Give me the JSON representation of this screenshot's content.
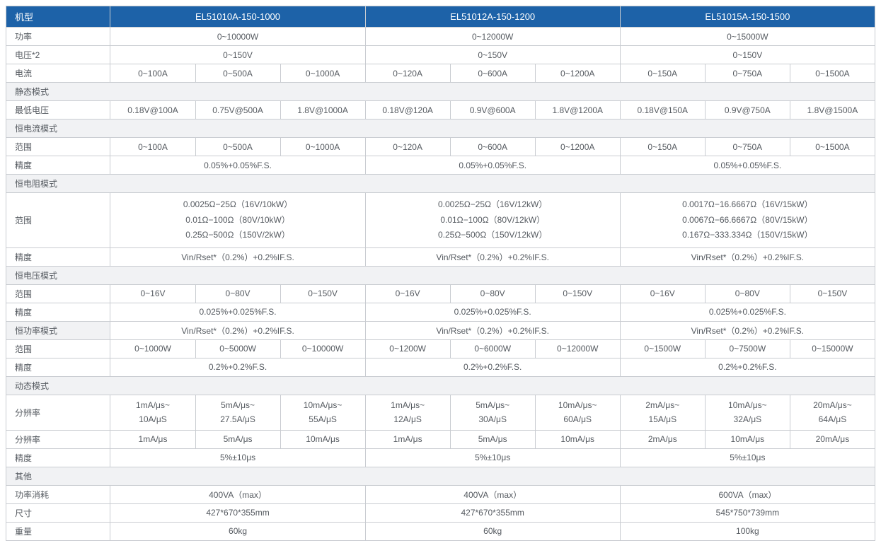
{
  "header": {
    "label": "机型",
    "models": [
      "EL51010A-150-1000",
      "EL51012A-150-1200",
      "EL51015A-150-1500"
    ]
  },
  "power": {
    "label": "功率",
    "vals": [
      "0~10000W",
      "0~12000W",
      "0~15000W"
    ]
  },
  "voltage": {
    "label": "电压*2",
    "vals": [
      "0~150V",
      "0~150V",
      "0~150V"
    ]
  },
  "current": {
    "label": "电流",
    "vals": [
      "0~100A",
      "0~500A",
      "0~1000A",
      "0~120A",
      "0~600A",
      "0~1200A",
      "0~150A",
      "0~750A",
      "0~1500A"
    ]
  },
  "static_mode": {
    "label": "静态模式"
  },
  "min_voltage": {
    "label": "最低电压",
    "vals": [
      "0.18V@100A",
      "0.75V@500A",
      "1.8V@1000A",
      "0.18V@120A",
      "0.9V@600A",
      "1.8V@1200A",
      "0.18V@150A",
      "0.9V@750A",
      "1.8V@1500A"
    ]
  },
  "cc_mode": {
    "label": "恒电流模式"
  },
  "cc_range": {
    "label": "范围",
    "vals": [
      "0~100A",
      "0~500A",
      "0~1000A",
      "0~120A",
      "0~600A",
      "0~1200A",
      "0~150A",
      "0~750A",
      "0~1500A"
    ]
  },
  "cc_acc": {
    "label": "精度",
    "vals": [
      "0.05%+0.05%F.S.",
      "0.05%+0.05%F.S.",
      "0.05%+0.05%F.S."
    ]
  },
  "cr_mode": {
    "label": "恒电阻模式"
  },
  "cr_range": {
    "label": "范围",
    "vals": [
      "0.0025Ω−25Ω（16V/10kW）\n0.01Ω−100Ω（80V/10kW）\n0.25Ω−500Ω（150V/2kW）",
      "0.0025Ω−25Ω（16V/12kW）\n0.01Ω−100Ω（80V/12kW）\n0.25Ω−500Ω（150V/12kW）",
      "0.0017Ω−16.6667Ω（16V/15kW）\n0.0067Ω−66.6667Ω（80V/15kW）\n0.167Ω−333.334Ω（150V/15kW）"
    ]
  },
  "cr_acc": {
    "label": "精度",
    "vals": [
      "Vin/Rset*（0.2%）+0.2%IF.S.",
      "Vin/Rset*（0.2%）+0.2%IF.S.",
      "Vin/Rset*（0.2%）+0.2%IF.S."
    ]
  },
  "cv_mode": {
    "label": "恒电压模式"
  },
  "cv_range": {
    "label": "范围",
    "vals": [
      "0~16V",
      "0~80V",
      "0~150V",
      "0~16V",
      "0~80V",
      "0~150V",
      "0~16V",
      "0~80V",
      "0~150V"
    ]
  },
  "cv_acc": {
    "label": "精度",
    "vals": [
      "0.025%+0.025%F.S.",
      "0.025%+0.025%F.S.",
      "0.025%+0.025%F.S."
    ]
  },
  "cp_mode": {
    "label": "恒功率模式",
    "vals": [
      "Vin/Rset*（0.2%）+0.2%IF.S.",
      "Vin/Rset*（0.2%）+0.2%IF.S.",
      "Vin/Rset*（0.2%）+0.2%IF.S."
    ]
  },
  "cp_range": {
    "label": "范围",
    "vals": [
      "0~1000W",
      "0~5000W",
      "0~10000W",
      "0~1200W",
      "0~6000W",
      "0~12000W",
      "0~1500W",
      "0~7500W",
      "0~15000W"
    ]
  },
  "cp_acc": {
    "label": "精度",
    "vals": [
      "0.2%+0.2%F.S.",
      "0.2%+0.2%F.S.",
      "0.2%+0.2%F.S."
    ]
  },
  "dyn_mode": {
    "label": "动态模式"
  },
  "dyn_res1": {
    "label": "分辨率",
    "vals": [
      "1mA/μs~\n10A/μS",
      "5mA/μs~\n27.5A/μS",
      "10mA/μs~\n55A/μS",
      "1mA/μs~\n12A/μS",
      "5mA/μs~\n30A/μS",
      "10mA/μs~\n60A/μS",
      "2mA/μs~\n15A/μS",
      "10mA/μs~\n32A/μS",
      "20mA/μs~\n64A/μS"
    ]
  },
  "dyn_res2": {
    "label": "分辨率",
    "vals": [
      "1mA/μs",
      "5mA/μs",
      "10mA/μs",
      "1mA/μs",
      "5mA/μs",
      "10mA/μs",
      "2mA/μs",
      "10mA/μs",
      "20mA/μs"
    ]
  },
  "dyn_acc": {
    "label": "精度",
    "vals": [
      "5%±10μs",
      "5%±10μs",
      "5%±10μs"
    ]
  },
  "other": {
    "label": "其他"
  },
  "consumption": {
    "label": "功率消耗",
    "vals": [
      "400VA（max）",
      "400VA（max）",
      "600VA（max）"
    ]
  },
  "size": {
    "label": "尺寸",
    "vals": [
      "427*670*355mm",
      "427*670*355mm",
      "545*750*739mm"
    ]
  },
  "weight": {
    "label": "重量",
    "vals": [
      "60kg",
      "60kg",
      "100kg"
    ]
  }
}
